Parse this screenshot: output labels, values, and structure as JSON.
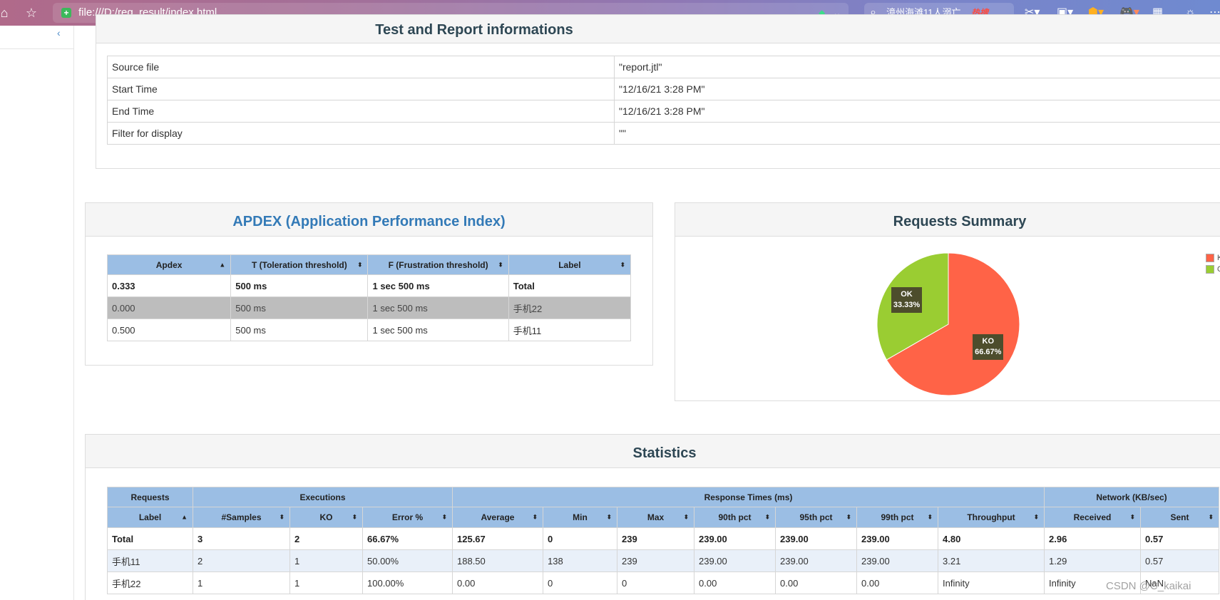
{
  "browser": {
    "url": "file:///D:/req_result/index.html",
    "search_text": "漳州海滩11人溺亡",
    "search_badge": "热搜"
  },
  "test_info": {
    "title": "Test and Report informations",
    "rows": [
      {
        "label": "Source file",
        "value": "\"report.jtl\""
      },
      {
        "label": "Start Time",
        "value": "\"12/16/21 3:28 PM\""
      },
      {
        "label": "End Time",
        "value": "\"12/16/21 3:28 PM\""
      },
      {
        "label": "Filter for display",
        "value": "\"\""
      }
    ]
  },
  "apdex": {
    "title": "APDEX (Application Performance Index)",
    "headers": [
      "Apdex",
      "T (Toleration threshold)",
      "F (Frustration threshold)",
      "Label"
    ],
    "rows": [
      [
        "0.333",
        "500 ms",
        "1 sec 500 ms",
        "Total"
      ],
      [
        "0.000",
        "500 ms",
        "1 sec 500 ms",
        "手机22"
      ],
      [
        "0.500",
        "500 ms",
        "1 sec 500 ms",
        "手机11"
      ]
    ]
  },
  "requests_summary": {
    "title": "Requests Summary",
    "chart_data": {
      "type": "pie",
      "slices": [
        {
          "name": "KO",
          "value": 66.67,
          "label": "66.67%",
          "color": "#ff6347"
        },
        {
          "name": "OK",
          "value": 33.33,
          "label": "33.33%",
          "color": "#9acd32"
        }
      ],
      "legend": [
        "K",
        "O"
      ],
      "legend_position": "top-right"
    }
  },
  "statistics": {
    "title": "Statistics",
    "groups": [
      {
        "label": "Requests",
        "span": 1
      },
      {
        "label": "Executions",
        "span": 3
      },
      {
        "label": "Response Times (ms)",
        "span": 7
      },
      {
        "label": "Network (KB/sec)",
        "span": 2
      }
    ],
    "headers": [
      "Label",
      "#Samples",
      "KO",
      "Error %",
      "Average",
      "Min",
      "Max",
      "90th pct",
      "95th pct",
      "99th pct",
      "Throughput",
      "Received",
      "Sent"
    ],
    "rows": [
      [
        "Total",
        "3",
        "2",
        "66.67%",
        "125.67",
        "0",
        "239",
        "239.00",
        "239.00",
        "239.00",
        "4.80",
        "2.96",
        "0.57"
      ],
      [
        "手机11",
        "2",
        "1",
        "50.00%",
        "188.50",
        "138",
        "239",
        "239.00",
        "239.00",
        "239.00",
        "3.21",
        "1.29",
        "0.57"
      ],
      [
        "手机22",
        "1",
        "1",
        "100.00%",
        "0.00",
        "0",
        "0",
        "0.00",
        "0.00",
        "0.00",
        "Infinity",
        "Infinity",
        "NaN"
      ]
    ]
  },
  "watermark": "CSDN @C_kaikai"
}
